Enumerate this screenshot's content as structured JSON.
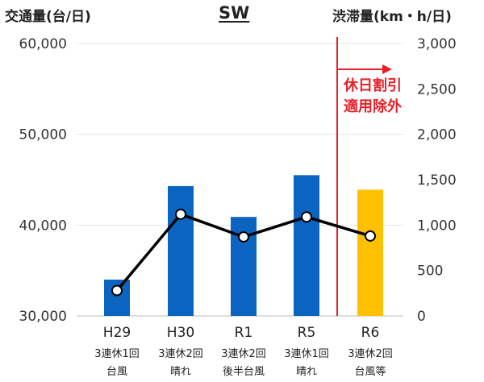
{
  "chart_data": {
    "type": "bar",
    "title": "SW",
    "ylabel_left": "交通量(台/日)",
    "ylabel_right": "渋滞量(km・h/日)",
    "ylim_left": [
      30000,
      60000
    ],
    "ylim_right": [
      0,
      3000
    ],
    "yticks_left": [
      "30,000",
      "40,000",
      "50,000",
      "60,000"
    ],
    "yticks_right": [
      "0",
      "500",
      "1,000",
      "1,500",
      "2,000",
      "2,500",
      "3,000"
    ],
    "categories": [
      {
        "main": "H29",
        "line2": "3連休1回",
        "line3": "台風"
      },
      {
        "main": "H30",
        "line2": "3連休2回",
        "line3": "晴れ"
      },
      {
        "main": "R1",
        "line2": "3連休2回",
        "line3": "後半台風"
      },
      {
        "main": "R5",
        "line2": "3連休1回",
        "line3": "晴れ"
      },
      {
        "main": "R6",
        "line2": "3連休2回",
        "line3": "台風等"
      }
    ],
    "series": [
      {
        "axis": "left",
        "kind": "bar",
        "values": [
          34000,
          44300,
          40900,
          45500,
          43900
        ],
        "colors": [
          "#0b64c0",
          "#0b64c0",
          "#0b64c0",
          "#0b64c0",
          "#ffc000"
        ]
      },
      {
        "axis": "right",
        "kind": "line",
        "values": [
          280,
          1120,
          870,
          1090,
          880
        ],
        "color": "#000000"
      }
    ],
    "annotation": {
      "line1": "休日割引",
      "line2": "適用除外",
      "color": "#e8202a"
    }
  }
}
